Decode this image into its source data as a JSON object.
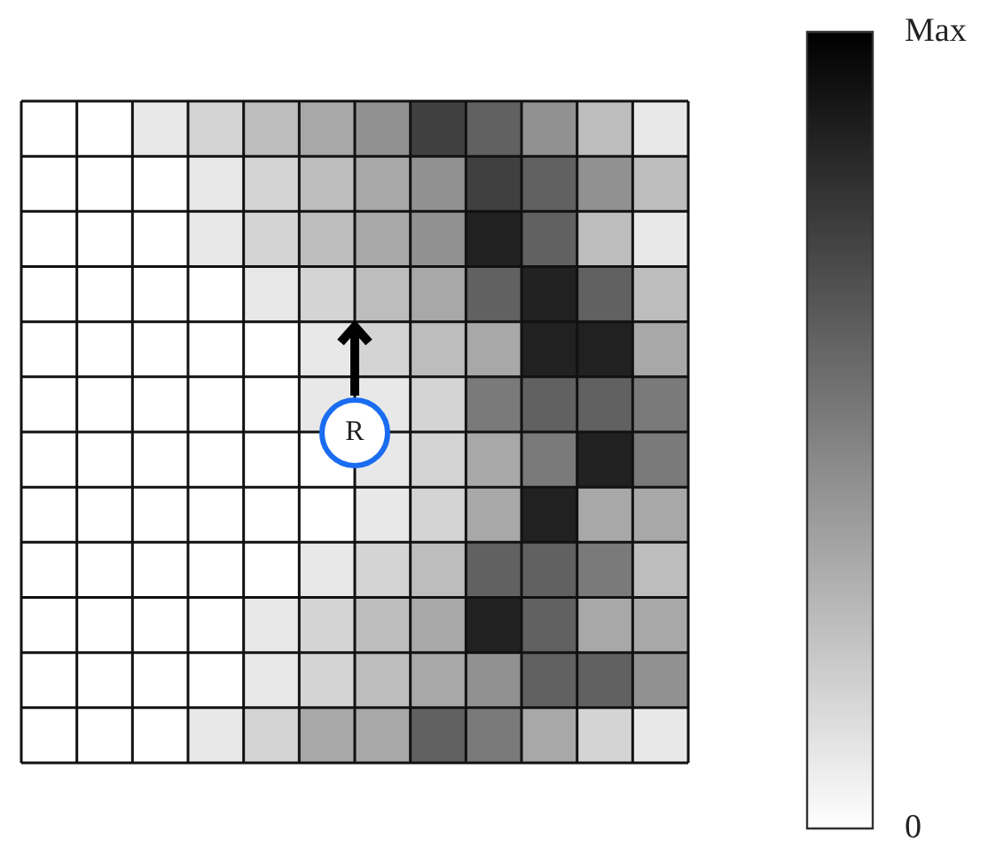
{
  "chart_data": {
    "type": "heatmap",
    "categories": [
      null,
      null,
      null,
      null,
      null,
      null,
      null,
      null,
      null,
      null,
      null,
      null
    ],
    "y_categories": [
      null,
      null,
      null,
      null,
      null,
      null,
      null,
      null,
      null,
      null,
      null,
      null
    ],
    "cells": [
      [
        0,
        0,
        0.09,
        0.17,
        0.26,
        0.34,
        0.43,
        0.75,
        0.62,
        0.43,
        0.26,
        0.09
      ],
      [
        0,
        0,
        0,
        0.09,
        0.17,
        0.26,
        0.34,
        0.43,
        0.75,
        0.62,
        0.43,
        0.26
      ],
      [
        0,
        0,
        0,
        0.09,
        0.17,
        0.26,
        0.34,
        0.43,
        0.87,
        0.62,
        0.26,
        0.09
      ],
      [
        0,
        0,
        0,
        0,
        0.09,
        0.17,
        0.26,
        0.34,
        0.62,
        0.87,
        0.62,
        0.26
      ],
      [
        0,
        0,
        0,
        0,
        0,
        0.09,
        0.17,
        0.26,
        0.34,
        0.87,
        0.87,
        0.34
      ],
      [
        0,
        0,
        0,
        0,
        0,
        0.09,
        0.09,
        0.17,
        0.52,
        0.62,
        0.62,
        0.52
      ],
      [
        0,
        0,
        0,
        0,
        0,
        0,
        0.09,
        0.17,
        0.34,
        0.52,
        0.87,
        0.52
      ],
      [
        0,
        0,
        0,
        0,
        0,
        0,
        0.09,
        0.17,
        0.34,
        0.87,
        0.34,
        0.34
      ],
      [
        0,
        0,
        0,
        0,
        0,
        0.09,
        0.17,
        0.26,
        0.62,
        0.62,
        0.52,
        0.26
      ],
      [
        0,
        0,
        0,
        0,
        0.09,
        0.17,
        0.26,
        0.34,
        0.87,
        0.62,
        0.34,
        0.34
      ],
      [
        0,
        0,
        0,
        0,
        0.09,
        0.17,
        0.26,
        0.34,
        0.43,
        0.62,
        0.62,
        0.43
      ],
      [
        0,
        0,
        0,
        0.09,
        0.17,
        0.34,
        0.34,
        0.62,
        0.52,
        0.34,
        0.17,
        0.09
      ]
    ],
    "clim": [
      0,
      1
    ],
    "cticks": [
      {
        "value": 0,
        "label": "0"
      },
      {
        "value": 1,
        "label": "Max"
      }
    ],
    "annotations": [
      "R"
    ]
  }
}
